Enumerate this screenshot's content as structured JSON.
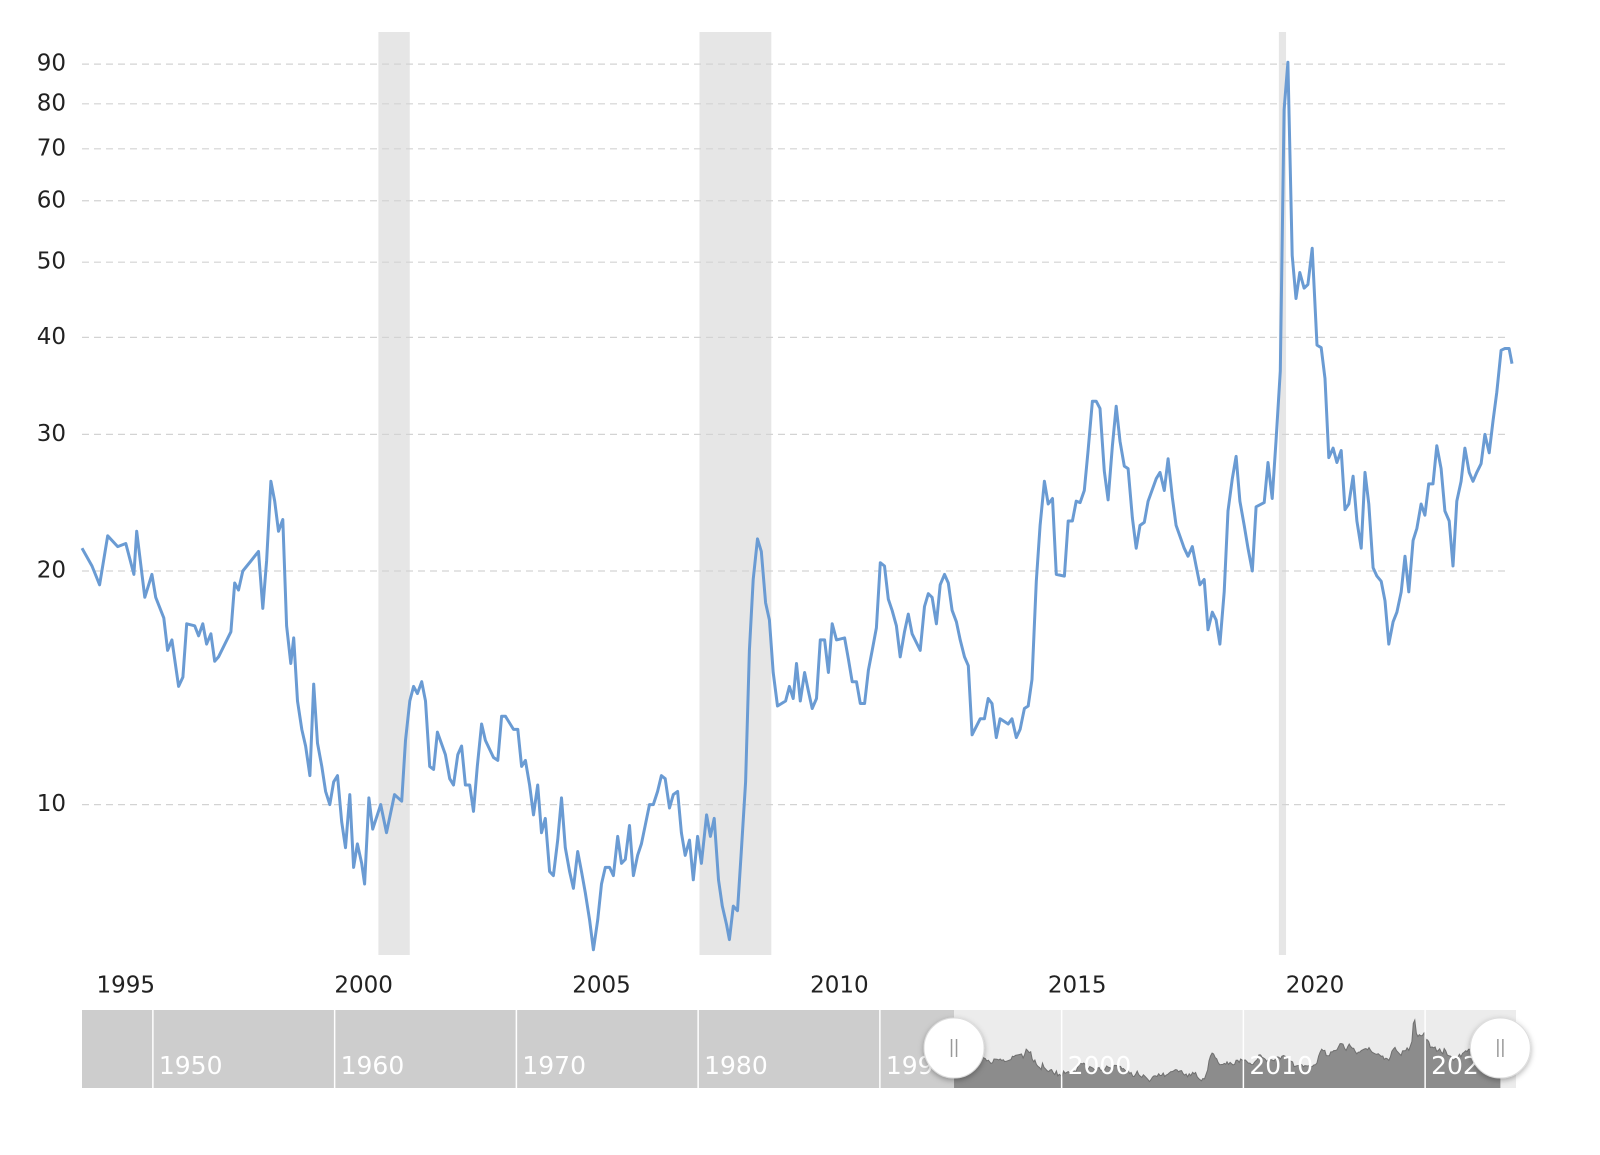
{
  "chart_data": {
    "type": "line",
    "log": true,
    "color": "#6a9bd3",
    "grid": true,
    "xlim": [
      1994.08,
      2024.14
    ],
    "xticks": [
      1995,
      2000,
      2005,
      2010,
      2015,
      2020
    ],
    "ylim": [
      6.4,
      99
    ],
    "yticks": [
      10,
      20,
      30,
      40,
      50,
      60,
      70,
      80,
      90
    ],
    "recessions": [
      [
        2000.31,
        2000.97
      ],
      [
        2007.06,
        2008.57
      ],
      [
        2019.24,
        2019.39
      ]
    ],
    "navigator": {
      "xlim": [
        1946.1,
        2025
      ],
      "xticks": [
        1950,
        1960,
        1970,
        1980,
        1990,
        2000,
        2010,
        2020
      ]
    },
    "x": [
      1994.08,
      1994.29,
      1994.45,
      1994.62,
      1994.83,
      1995.0,
      1995.17,
      1995.23,
      1995.4,
      1995.55,
      1995.63,
      1995.8,
      1995.88,
      1995.97,
      1996.11,
      1996.2,
      1996.28,
      1996.45,
      1996.53,
      1996.62,
      1996.7,
      1996.79,
      1996.87,
      1996.95,
      1997.21,
      1997.29,
      1997.37,
      1997.46,
      1997.63,
      1997.79,
      1997.88,
      1997.96,
      1998.05,
      1998.13,
      1998.21,
      1998.3,
      1998.38,
      1998.47,
      1998.53,
      1998.61,
      1998.7,
      1998.78,
      1998.87,
      1998.95,
      1999.03,
      1999.12,
      1999.2,
      1999.29,
      1999.37,
      1999.45,
      1999.54,
      1999.62,
      1999.71,
      1999.79,
      1999.87,
      1999.96,
      2000.02,
      2000.11,
      2000.19,
      2000.36,
      2000.48,
      2000.65,
      2000.8,
      2000.88,
      2000.97,
      2001.05,
      2001.13,
      2001.22,
      2001.3,
      2001.39,
      2001.47,
      2001.55,
      2001.72,
      2001.81,
      2001.89,
      2001.98,
      2002.06,
      2002.14,
      2002.23,
      2002.31,
      2002.39,
      2002.48,
      2002.56,
      2002.73,
      2002.82,
      2002.9,
      2002.98,
      2003.15,
      2003.24,
      2003.32,
      2003.4,
      2003.49,
      2003.57,
      2003.66,
      2003.74,
      2003.82,
      2003.91,
      2003.99,
      2004.08,
      2004.16,
      2004.24,
      2004.33,
      2004.41,
      2004.5,
      2004.58,
      2004.66,
      2004.75,
      2004.83,
      2004.92,
      2005.0,
      2005.08,
      2005.17,
      2005.25,
      2005.34,
      2005.42,
      2005.5,
      2005.59,
      2005.67,
      2005.76,
      2005.84,
      2005.92,
      2006.01,
      2006.09,
      2006.18,
      2006.26,
      2006.34,
      2006.43,
      2006.51,
      2006.6,
      2006.68,
      2006.76,
      2006.85,
      2006.93,
      2007.02,
      2007.1,
      2007.21,
      2007.29,
      2007.37,
      2007.46,
      2007.54,
      2007.63,
      2007.69,
      2007.77,
      2007.86,
      2007.94,
      2008.03,
      2008.11,
      2008.19,
      2008.28,
      2008.36,
      2008.45,
      2008.53,
      2008.61,
      2008.7,
      2008.87,
      2008.95,
      2009.03,
      2009.1,
      2009.18,
      2009.27,
      2009.35,
      2009.43,
      2009.52,
      2009.6,
      2009.69,
      2009.77,
      2009.85,
      2009.94,
      2010.11,
      2010.19,
      2010.27,
      2010.36,
      2010.44,
      2010.53,
      2010.61,
      2010.69,
      2010.78,
      2010.86,
      2010.95,
      2011.03,
      2011.11,
      2011.2,
      2011.28,
      2011.37,
      2011.45,
      2011.53,
      2011.7,
      2011.79,
      2011.87,
      2011.95,
      2012.04,
      2012.12,
      2012.21,
      2012.29,
      2012.37,
      2012.46,
      2012.54,
      2012.63,
      2012.71,
      2012.79,
      2012.96,
      2013.05,
      2013.13,
      2013.21,
      2013.3,
      2013.38,
      2013.55,
      2013.63,
      2013.72,
      2013.8,
      2013.89,
      2013.97,
      2014.05,
      2014.14,
      2014.22,
      2014.31,
      2014.39,
      2014.48,
      2014.56,
      2014.73,
      2014.81,
      2014.9,
      2014.98,
      2015.06,
      2015.15,
      2015.23,
      2015.32,
      2015.4,
      2015.48,
      2015.57,
      2015.65,
      2015.74,
      2015.82,
      2015.9,
      2015.99,
      2016.07,
      2016.16,
      2016.24,
      2016.32,
      2016.41,
      2016.49,
      2016.66,
      2016.74,
      2016.83,
      2016.91,
      2017.0,
      2017.08,
      2017.25,
      2017.33,
      2017.42,
      2017.5,
      2017.58,
      2017.67,
      2017.75,
      2017.84,
      2017.92,
      2018.0,
      2018.09,
      2018.17,
      2018.26,
      2018.34,
      2018.42,
      2018.51,
      2018.59,
      2018.68,
      2018.76,
      2018.93,
      2019.01,
      2019.1,
      2019.18,
      2019.27,
      2019.35,
      2019.43,
      2019.52,
      2019.6,
      2019.68,
      2019.77,
      2019.85,
      2019.94,
      2020.04,
      2020.13,
      2020.21,
      2020.29,
      2020.38,
      2020.46,
      2020.55,
      2020.63,
      2020.71,
      2020.8,
      2020.88,
      2020.97,
      2021.05,
      2021.13,
      2021.22,
      2021.3,
      2021.39,
      2021.47,
      2021.55,
      2021.64,
      2021.72,
      2021.81,
      2021.89,
      2021.97,
      2022.06,
      2022.14,
      2022.23,
      2022.31,
      2022.39,
      2022.48,
      2022.56,
      2022.65,
      2022.73,
      2022.82,
      2022.9,
      2022.98,
      2023.07,
      2023.15,
      2023.24,
      2023.32,
      2023.4,
      2023.49,
      2023.57,
      2023.66,
      2023.74,
      2023.82,
      2023.91,
      2023.99,
      2024.08,
      2024.14
    ],
    "values": [
      21.4,
      20.3,
      19.2,
      22.2,
      21.5,
      21.7,
      19.8,
      22.5,
      18.5,
      19.8,
      18.5,
      17.4,
      15.8,
      16.3,
      14.2,
      14.6,
      17.1,
      17.0,
      16.5,
      17.1,
      16.1,
      16.6,
      15.3,
      15.5,
      16.7,
      19.3,
      18.9,
      20.0,
      20.6,
      21.2,
      17.9,
      20.6,
      26.1,
      24.6,
      22.5,
      23.3,
      17.0,
      15.2,
      16.4,
      13.6,
      12.5,
      11.9,
      10.9,
      14.3,
      12.0,
      11.2,
      10.4,
      10.0,
      10.7,
      10.9,
      9.5,
      8.8,
      10.3,
      8.3,
      8.9,
      8.4,
      7.9,
      10.2,
      9.3,
      10.0,
      9.2,
      10.3,
      10.1,
      12.1,
      13.6,
      14.2,
      13.9,
      14.4,
      13.6,
      11.2,
      11.1,
      12.4,
      11.6,
      10.8,
      10.6,
      11.6,
      11.9,
      10.6,
      10.6,
      9.8,
      11.2,
      12.7,
      12.1,
      11.5,
      11.4,
      13.0,
      13.0,
      12.5,
      12.5,
      11.2,
      11.4,
      10.6,
      9.7,
      10.6,
      9.2,
      9.6,
      8.2,
      8.1,
      9.0,
      10.2,
      8.8,
      8.2,
      7.8,
      8.7,
      8.2,
      7.7,
      7.1,
      6.5,
      7.1,
      7.9,
      8.3,
      8.3,
      8.1,
      9.1,
      8.4,
      8.5,
      9.4,
      8.1,
      8.6,
      8.9,
      9.4,
      10.0,
      10.0,
      10.4,
      10.9,
      10.8,
      9.9,
      10.3,
      10.4,
      9.2,
      8.6,
      9.0,
      8.0,
      9.1,
      8.4,
      9.7,
      9.1,
      9.6,
      8.0,
      7.4,
      7.0,
      6.7,
      7.4,
      7.3,
      8.7,
      10.7,
      15.8,
      19.5,
      22.0,
      21.2,
      18.2,
      17.3,
      14.8,
      13.4,
      13.6,
      14.2,
      13.7,
      15.2,
      13.6,
      14.8,
      14.0,
      13.3,
      13.7,
      16.3,
      16.3,
      14.8,
      17.1,
      16.3,
      16.4,
      15.4,
      14.4,
      14.4,
      13.5,
      13.5,
      14.9,
      15.8,
      16.9,
      20.5,
      20.3,
      18.4,
      17.8,
      17.0,
      15.5,
      16.7,
      17.6,
      16.6,
      15.8,
      18.0,
      18.7,
      18.5,
      17.1,
      19.2,
      19.8,
      19.3,
      17.8,
      17.2,
      16.3,
      15.5,
      15.1,
      12.3,
      12.9,
      12.9,
      13.7,
      13.5,
      12.2,
      12.9,
      12.7,
      12.9,
      12.2,
      12.5,
      13.3,
      13.4,
      14.5,
      19.4,
      22.9,
      26.1,
      24.4,
      24.8,
      19.8,
      19.7,
      23.2,
      23.2,
      24.6,
      24.5,
      25.4,
      28.6,
      33.1,
      33.1,
      32.4,
      26.9,
      24.7,
      29.0,
      32.6,
      29.4,
      27.3,
      27.1,
      23.4,
      21.4,
      22.9,
      23.1,
      24.6,
      26.3,
      26.8,
      25.4,
      27.9,
      24.9,
      22.9,
      21.4,
      20.9,
      21.5,
      20.3,
      19.2,
      19.5,
      16.8,
      17.7,
      17.3,
      16.1,
      18.8,
      23.9,
      26.3,
      28.1,
      24.6,
      22.9,
      21.4,
      20.0,
      24.2,
      24.5,
      27.6,
      24.8,
      29.4,
      36.2,
      78.6,
      90.5,
      51.0,
      44.9,
      48.5,
      46.3,
      46.8,
      52.1,
      39.1,
      38.8,
      35.4,
      28.0,
      28.8,
      27.6,
      28.6,
      24.0,
      24.4,
      26.5,
      23.2,
      21.4,
      26.8,
      24.4,
      20.2,
      19.7,
      19.4,
      18.3,
      16.1,
      17.2,
      17.7,
      18.8,
      20.9,
      18.8,
      21.9,
      22.7,
      24.4,
      23.6,
      25.9,
      25.9,
      29.0,
      27.1,
      23.9,
      23.2,
      20.3,
      24.6,
      26.1,
      28.8,
      26.8,
      26.1,
      26.8,
      27.5,
      30.0,
      28.4,
      31.2,
      34.0,
      38.5,
      38.7,
      38.7,
      37.0
    ]
  }
}
